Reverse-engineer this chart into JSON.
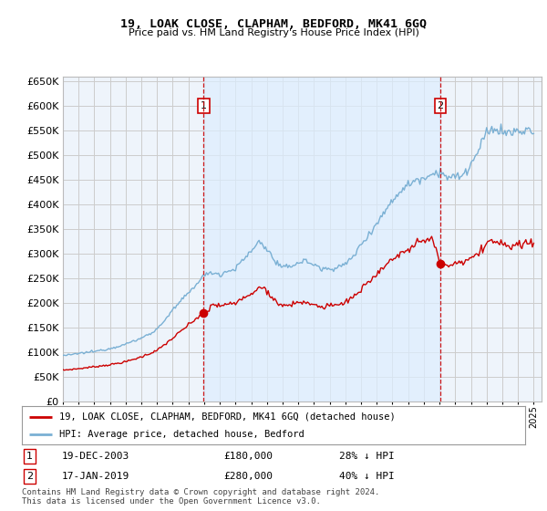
{
  "title": "19, LOAK CLOSE, CLAPHAM, BEDFORD, MK41 6GQ",
  "subtitle": "Price paid vs. HM Land Registry's House Price Index (HPI)",
  "ylim": [
    0,
    660000
  ],
  "yticks": [
    0,
    50000,
    100000,
    150000,
    200000,
    250000,
    300000,
    350000,
    400000,
    450000,
    500000,
    550000,
    600000,
    650000
  ],
  "hpi_color": "#7ab0d4",
  "price_color": "#cc0000",
  "vline_color": "#cc0000",
  "grid_color": "#cccccc",
  "bg_color": "#ffffff",
  "plot_bg_color": "#eef4fb",
  "shade_color": "#ddeeff",
  "legend_label_price": "19, LOAK CLOSE, CLAPHAM, BEDFORD, MK41 6GQ (detached house)",
  "legend_label_hpi": "HPI: Average price, detached house, Bedford",
  "sale1_date": "19-DEC-2003",
  "sale1_price": "£180,000",
  "sale1_hpi": "28% ↓ HPI",
  "sale1_x": 2003.97,
  "sale1_y": 180000,
  "sale2_date": "17-JAN-2019",
  "sale2_price": "£280,000",
  "sale2_hpi": "40% ↓ HPI",
  "sale2_x": 2019.05,
  "sale2_y": 280000,
  "footer": "Contains HM Land Registry data © Crown copyright and database right 2024.\nThis data is licensed under the Open Government Licence v3.0.",
  "xmin": 1995.0,
  "xmax": 2025.5
}
